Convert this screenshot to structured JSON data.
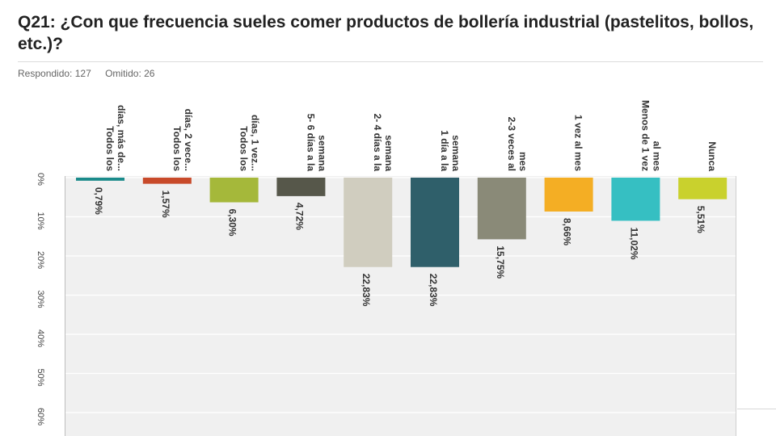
{
  "header": {
    "title": "Q21: ¿Con que frecuencia sueles comer productos de bollería industrial (pastelitos, bollos, etc.)?",
    "respondido": "Respondido: 127",
    "omitido": "Omitido: 26"
  },
  "chart_data": {
    "type": "bar",
    "orientation": "rotated-vertical",
    "categories": [
      [
        "Todos los",
        "días, más de..."
      ],
      [
        "Todos los",
        "días, 2 vece..."
      ],
      [
        "Todos los",
        "días, 1 vez..."
      ],
      [
        "5- 6 días a la",
        "semana"
      ],
      [
        "2- 4 días a la",
        "semana"
      ],
      [
        "1 día a la",
        "semana"
      ],
      [
        "2-3 veces al",
        "mes"
      ],
      [
        "1 vez al mes"
      ],
      [
        "Menos de 1 vez",
        "al mes"
      ],
      [
        "Nunca"
      ]
    ],
    "values": [
      0.79,
      1.57,
      6.3,
      4.72,
      22.83,
      22.83,
      15.75,
      8.66,
      11.02,
      5.51
    ],
    "value_labels": [
      "0,79%",
      "1,57%",
      "6,30%",
      "4,72%",
      "22,83%",
      "22,83%",
      "15,75%",
      "8,66%",
      "11,02%",
      "5,51%"
    ],
    "colors": [
      "#1a8a8a",
      "#c84a2a",
      "#a5b83a",
      "#56574a",
      "#d0cdbf",
      "#2f5f6a",
      "#8a8a78",
      "#f4ae24",
      "#36bfc2",
      "#c9d12d"
    ],
    "ticks": [
      "0%",
      "10%",
      "20%",
      "30%",
      "40%",
      "50%",
      "60%"
    ],
    "ylim": [
      0,
      60
    ],
    "grid": true,
    "plot_background": "#f0f0f0"
  }
}
